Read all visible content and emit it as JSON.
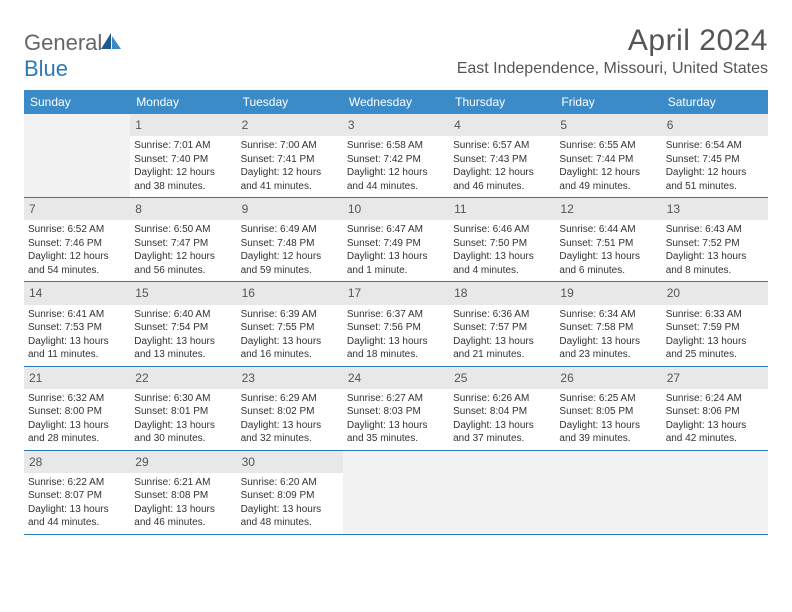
{
  "brand": {
    "name_gray": "General",
    "name_blue": "Blue"
  },
  "title": "April 2024",
  "location": "East Independence, Missouri, United States",
  "colors": {
    "header_bg": "#3b8bc9",
    "daynum_bg": "#e8e8e8",
    "empty_bg": "#f2f2f2",
    "rule": "#2a7ab8",
    "text": "#333333",
    "title_text": "#555555"
  },
  "dow": [
    "Sunday",
    "Monday",
    "Tuesday",
    "Wednesday",
    "Thursday",
    "Friday",
    "Saturday"
  ],
  "weeks": [
    [
      null,
      {
        "n": "1",
        "sr": "Sunrise: 7:01 AM",
        "ss": "Sunset: 7:40 PM",
        "dl": "Daylight: 12 hours and 38 minutes."
      },
      {
        "n": "2",
        "sr": "Sunrise: 7:00 AM",
        "ss": "Sunset: 7:41 PM",
        "dl": "Daylight: 12 hours and 41 minutes."
      },
      {
        "n": "3",
        "sr": "Sunrise: 6:58 AM",
        "ss": "Sunset: 7:42 PM",
        "dl": "Daylight: 12 hours and 44 minutes."
      },
      {
        "n": "4",
        "sr": "Sunrise: 6:57 AM",
        "ss": "Sunset: 7:43 PM",
        "dl": "Daylight: 12 hours and 46 minutes."
      },
      {
        "n": "5",
        "sr": "Sunrise: 6:55 AM",
        "ss": "Sunset: 7:44 PM",
        "dl": "Daylight: 12 hours and 49 minutes."
      },
      {
        "n": "6",
        "sr": "Sunrise: 6:54 AM",
        "ss": "Sunset: 7:45 PM",
        "dl": "Daylight: 12 hours and 51 minutes."
      }
    ],
    [
      {
        "n": "7",
        "sr": "Sunrise: 6:52 AM",
        "ss": "Sunset: 7:46 PM",
        "dl": "Daylight: 12 hours and 54 minutes."
      },
      {
        "n": "8",
        "sr": "Sunrise: 6:50 AM",
        "ss": "Sunset: 7:47 PM",
        "dl": "Daylight: 12 hours and 56 minutes."
      },
      {
        "n": "9",
        "sr": "Sunrise: 6:49 AM",
        "ss": "Sunset: 7:48 PM",
        "dl": "Daylight: 12 hours and 59 minutes."
      },
      {
        "n": "10",
        "sr": "Sunrise: 6:47 AM",
        "ss": "Sunset: 7:49 PM",
        "dl": "Daylight: 13 hours and 1 minute."
      },
      {
        "n": "11",
        "sr": "Sunrise: 6:46 AM",
        "ss": "Sunset: 7:50 PM",
        "dl": "Daylight: 13 hours and 4 minutes."
      },
      {
        "n": "12",
        "sr": "Sunrise: 6:44 AM",
        "ss": "Sunset: 7:51 PM",
        "dl": "Daylight: 13 hours and 6 minutes."
      },
      {
        "n": "13",
        "sr": "Sunrise: 6:43 AM",
        "ss": "Sunset: 7:52 PM",
        "dl": "Daylight: 13 hours and 8 minutes."
      }
    ],
    [
      {
        "n": "14",
        "sr": "Sunrise: 6:41 AM",
        "ss": "Sunset: 7:53 PM",
        "dl": "Daylight: 13 hours and 11 minutes."
      },
      {
        "n": "15",
        "sr": "Sunrise: 6:40 AM",
        "ss": "Sunset: 7:54 PM",
        "dl": "Daylight: 13 hours and 13 minutes."
      },
      {
        "n": "16",
        "sr": "Sunrise: 6:39 AM",
        "ss": "Sunset: 7:55 PM",
        "dl": "Daylight: 13 hours and 16 minutes."
      },
      {
        "n": "17",
        "sr": "Sunrise: 6:37 AM",
        "ss": "Sunset: 7:56 PM",
        "dl": "Daylight: 13 hours and 18 minutes."
      },
      {
        "n": "18",
        "sr": "Sunrise: 6:36 AM",
        "ss": "Sunset: 7:57 PM",
        "dl": "Daylight: 13 hours and 21 minutes."
      },
      {
        "n": "19",
        "sr": "Sunrise: 6:34 AM",
        "ss": "Sunset: 7:58 PM",
        "dl": "Daylight: 13 hours and 23 minutes."
      },
      {
        "n": "20",
        "sr": "Sunrise: 6:33 AM",
        "ss": "Sunset: 7:59 PM",
        "dl": "Daylight: 13 hours and 25 minutes."
      }
    ],
    [
      {
        "n": "21",
        "sr": "Sunrise: 6:32 AM",
        "ss": "Sunset: 8:00 PM",
        "dl": "Daylight: 13 hours and 28 minutes."
      },
      {
        "n": "22",
        "sr": "Sunrise: 6:30 AM",
        "ss": "Sunset: 8:01 PM",
        "dl": "Daylight: 13 hours and 30 minutes."
      },
      {
        "n": "23",
        "sr": "Sunrise: 6:29 AM",
        "ss": "Sunset: 8:02 PM",
        "dl": "Daylight: 13 hours and 32 minutes."
      },
      {
        "n": "24",
        "sr": "Sunrise: 6:27 AM",
        "ss": "Sunset: 8:03 PM",
        "dl": "Daylight: 13 hours and 35 minutes."
      },
      {
        "n": "25",
        "sr": "Sunrise: 6:26 AM",
        "ss": "Sunset: 8:04 PM",
        "dl": "Daylight: 13 hours and 37 minutes."
      },
      {
        "n": "26",
        "sr": "Sunrise: 6:25 AM",
        "ss": "Sunset: 8:05 PM",
        "dl": "Daylight: 13 hours and 39 minutes."
      },
      {
        "n": "27",
        "sr": "Sunrise: 6:24 AM",
        "ss": "Sunset: 8:06 PM",
        "dl": "Daylight: 13 hours and 42 minutes."
      }
    ],
    [
      {
        "n": "28",
        "sr": "Sunrise: 6:22 AM",
        "ss": "Sunset: 8:07 PM",
        "dl": "Daylight: 13 hours and 44 minutes."
      },
      {
        "n": "29",
        "sr": "Sunrise: 6:21 AM",
        "ss": "Sunset: 8:08 PM",
        "dl": "Daylight: 13 hours and 46 minutes."
      },
      {
        "n": "30",
        "sr": "Sunrise: 6:20 AM",
        "ss": "Sunset: 8:09 PM",
        "dl": "Daylight: 13 hours and 48 minutes."
      },
      null,
      null,
      null,
      null
    ]
  ]
}
